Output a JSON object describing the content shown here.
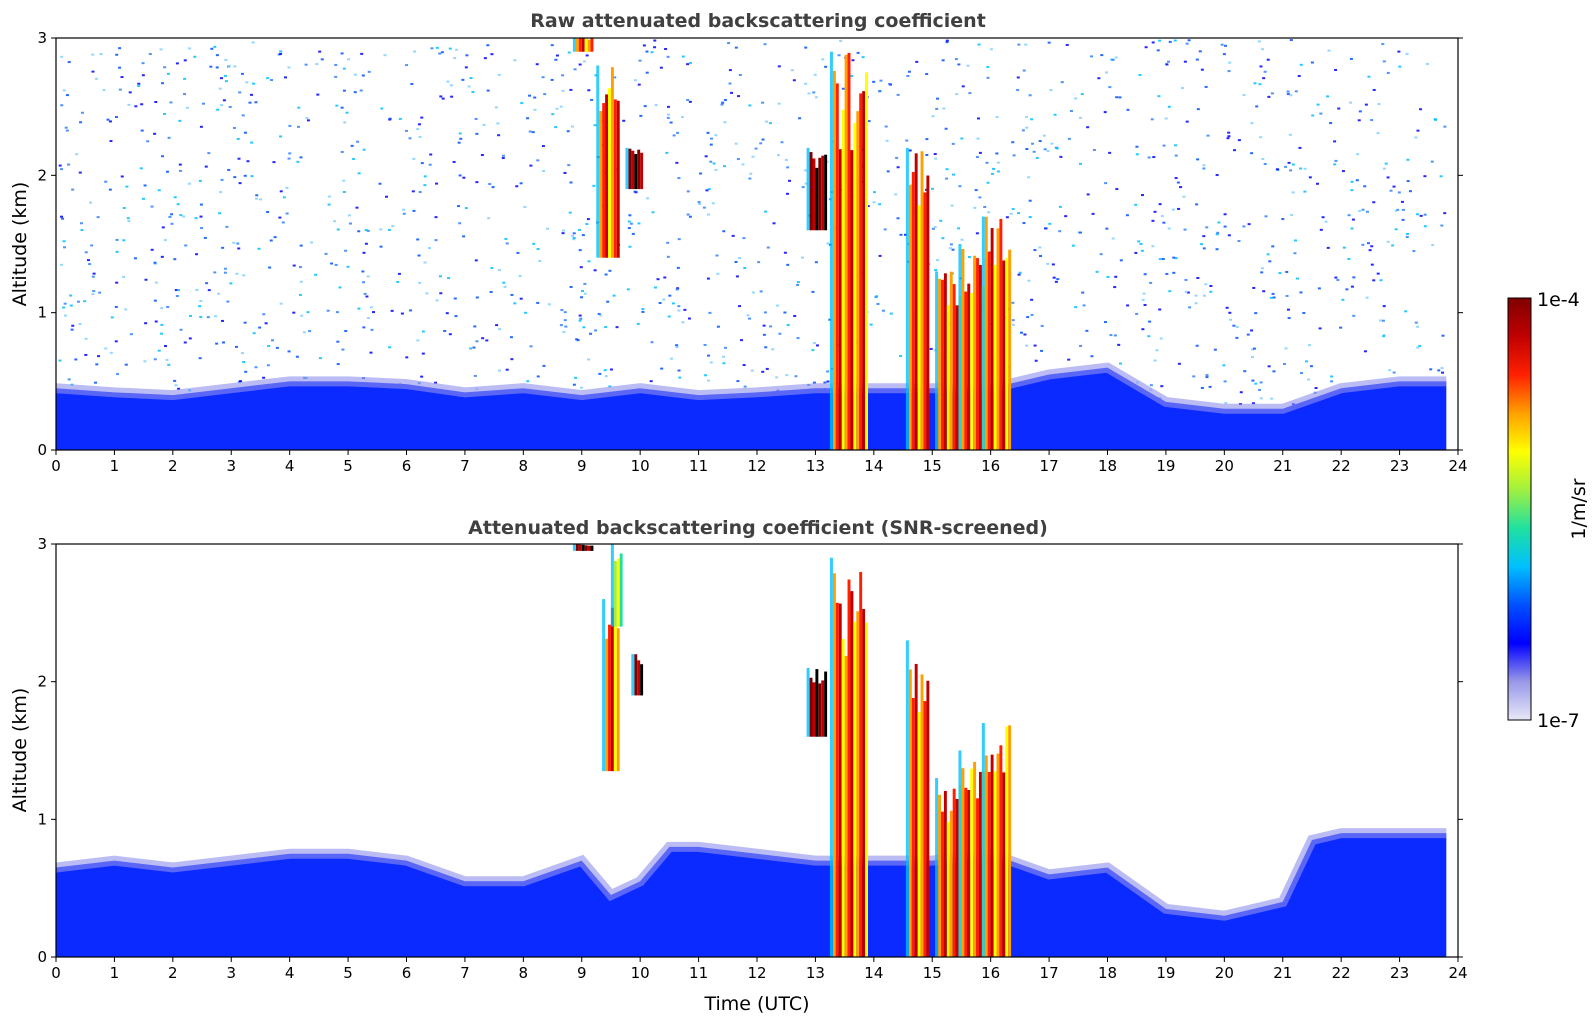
{
  "chart_data": [
    {
      "type": "heatmap",
      "title": "Raw attenuated backscattering coefficient",
      "xlabel": "",
      "ylabel": "Altitude (km)",
      "xlim": [
        0,
        24
      ],
      "ylim": [
        0,
        3
      ],
      "xticks": [
        "0",
        "1",
        "2",
        "3",
        "4",
        "5",
        "6",
        "7",
        "8",
        "9",
        "10",
        "11",
        "12",
        "13",
        "14",
        "15",
        "16",
        "17",
        "18",
        "19",
        "20",
        "21",
        "22",
        "23",
        "24"
      ],
      "yticks": [
        "0",
        "1",
        "2",
        "3"
      ],
      "data_end_time": 23.8,
      "noise_background": true,
      "boundary_layer_top_km": [
        [
          0,
          0.45
        ],
        [
          1,
          0.42
        ],
        [
          2,
          0.4
        ],
        [
          3,
          0.45
        ],
        [
          4,
          0.5
        ],
        [
          5,
          0.5
        ],
        [
          6,
          0.48
        ],
        [
          7,
          0.42
        ],
        [
          8,
          0.45
        ],
        [
          9,
          0.4
        ],
        [
          10,
          0.45
        ],
        [
          11,
          0.4
        ],
        [
          12,
          0.42
        ],
        [
          13,
          0.45
        ],
        [
          14,
          0.45
        ],
        [
          15,
          0.45
        ],
        [
          16,
          0.45
        ],
        [
          17,
          0.55
        ],
        [
          18,
          0.6
        ],
        [
          19,
          0.35
        ],
        [
          20,
          0.3
        ],
        [
          21,
          0.3
        ],
        [
          22,
          0.45
        ],
        [
          23,
          0.5
        ],
        [
          23.8,
          0.5
        ]
      ],
      "features": [
        {
          "t0": 8.9,
          "t1": 9.2,
          "z_top": 3.0,
          "z_bot": 2.9,
          "level": "high"
        },
        {
          "t0": 9.3,
          "t1": 9.65,
          "z_top": 2.8,
          "z_bot": 1.4,
          "level": "high"
        },
        {
          "t0": 9.8,
          "t1": 10.05,
          "z_top": 2.2,
          "z_bot": 1.9,
          "level": "max"
        },
        {
          "t0": 12.9,
          "t1": 13.2,
          "z_top": 2.2,
          "z_bot": 1.6,
          "level": "max"
        },
        {
          "t0": 13.3,
          "t1": 13.9,
          "z_top": 2.9,
          "z_bot": 0.0,
          "level": "high"
        },
        {
          "t0": 14.6,
          "t1": 14.95,
          "z_top": 2.2,
          "z_bot": 0.0,
          "level": "high"
        },
        {
          "t0": 15.1,
          "t1": 15.55,
          "z_top": 1.3,
          "z_bot": 0.0,
          "level": "high"
        },
        {
          "t0": 15.5,
          "t1": 15.95,
          "z_top": 1.5,
          "z_bot": 0.0,
          "level": "high"
        },
        {
          "t0": 15.9,
          "t1": 16.35,
          "z_top": 1.7,
          "z_bot": 0.0,
          "level": "high"
        }
      ]
    },
    {
      "type": "heatmap",
      "title": "Attenuated backscattering coefficient (SNR-screened)",
      "xlabel": "Time (UTC)",
      "ylabel": "Altitude (km)",
      "xlim": [
        0,
        24
      ],
      "ylim": [
        0,
        3
      ],
      "xticks": [
        "0",
        "1",
        "2",
        "3",
        "4",
        "5",
        "6",
        "7",
        "8",
        "9",
        "10",
        "11",
        "12",
        "13",
        "14",
        "15",
        "16",
        "17",
        "18",
        "19",
        "20",
        "21",
        "22",
        "23",
        "24"
      ],
      "yticks": [
        "0",
        "1",
        "2",
        "3"
      ],
      "data_end_time": 23.8,
      "noise_background": false,
      "boundary_layer_top_km": [
        [
          0,
          0.65
        ],
        [
          1,
          0.7
        ],
        [
          2,
          0.65
        ],
        [
          3,
          0.7
        ],
        [
          4,
          0.75
        ],
        [
          5,
          0.75
        ],
        [
          6,
          0.7
        ],
        [
          7,
          0.55
        ],
        [
          8,
          0.55
        ],
        [
          9,
          0.7
        ],
        [
          9.5,
          0.45
        ],
        [
          10,
          0.55
        ],
        [
          10.5,
          0.8
        ],
        [
          11,
          0.8
        ],
        [
          12,
          0.75
        ],
        [
          13,
          0.7
        ],
        [
          14,
          0.7
        ],
        [
          15,
          0.7
        ],
        [
          16,
          0.75
        ],
        [
          17,
          0.6
        ],
        [
          18,
          0.65
        ],
        [
          19,
          0.35
        ],
        [
          20,
          0.3
        ],
        [
          21,
          0.4
        ],
        [
          21.5,
          0.85
        ],
        [
          22,
          0.9
        ],
        [
          23,
          0.9
        ],
        [
          23.8,
          0.9
        ]
      ],
      "features": [
        {
          "t0": 8.9,
          "t1": 9.2,
          "z_top": 3.0,
          "z_bot": 2.95,
          "level": "max"
        },
        {
          "t0": 9.4,
          "t1": 9.65,
          "z_top": 2.6,
          "z_bot": 1.35,
          "level": "high"
        },
        {
          "t0": 9.55,
          "t1": 9.7,
          "z_top": 3.0,
          "z_bot": 2.4,
          "level": "mid"
        },
        {
          "t0": 9.9,
          "t1": 10.05,
          "z_top": 2.2,
          "z_bot": 1.9,
          "level": "max"
        },
        {
          "t0": 12.9,
          "t1": 13.2,
          "z_top": 2.1,
          "z_bot": 1.6,
          "level": "max"
        },
        {
          "t0": 13.3,
          "t1": 13.9,
          "z_top": 2.9,
          "z_bot": 0.0,
          "level": "high"
        },
        {
          "t0": 14.6,
          "t1": 14.95,
          "z_top": 2.3,
          "z_bot": 0.0,
          "level": "high"
        },
        {
          "t0": 15.1,
          "t1": 15.55,
          "z_top": 1.3,
          "z_bot": 0.0,
          "level": "high"
        },
        {
          "t0": 15.5,
          "t1": 15.95,
          "z_top": 1.5,
          "z_bot": 0.0,
          "level": "high"
        },
        {
          "t0": 15.9,
          "t1": 16.35,
          "z_top": 1.7,
          "z_bot": 0.0,
          "level": "high"
        }
      ]
    }
  ],
  "colorbar": {
    "label": "1/m/sr",
    "max_label": "1e-4",
    "min_label": "1e-7",
    "scale": "log",
    "range": [
      1e-07,
      0.0001
    ],
    "colors": [
      "#e8e8f8",
      "#9898e8",
      "#0000ff",
      "#0050ff",
      "#00c0ff",
      "#20e0a0",
      "#a0f040",
      "#ffff00",
      "#ffa000",
      "#ff2000",
      "#c00000",
      "#800000"
    ]
  }
}
